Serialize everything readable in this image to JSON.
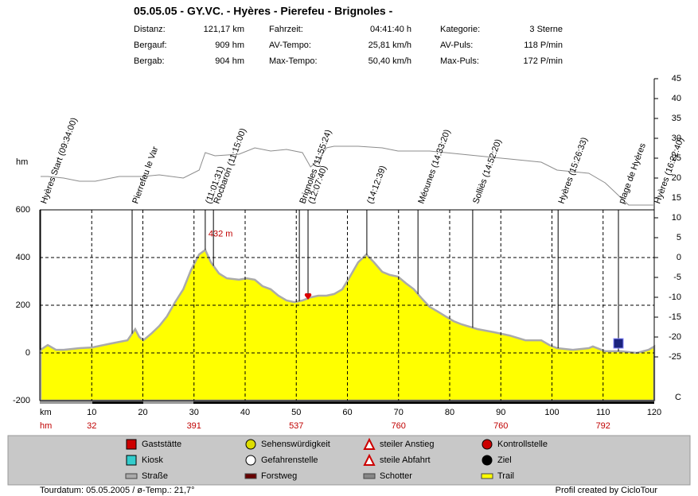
{
  "header": {
    "title": "05.05.05 - GY.VC. - Hyères - Pierefeu - Brignoles -",
    "stats": [
      [
        [
          "Distanz:",
          "121,17 km"
        ],
        [
          "Fahrzeit:",
          "04:41:40 h"
        ],
        [
          "Kategorie:",
          "3 Sterne"
        ]
      ],
      [
        [
          "Bergauf:",
          "909 hm"
        ],
        [
          "AV-Tempo:",
          "25,81 km/h"
        ],
        [
          "AV-Puls:",
          "118 P/min"
        ]
      ],
      [
        [
          "Bergab:",
          "904 hm"
        ],
        [
          "Max-Tempo:",
          "50,40 km/h"
        ],
        [
          "Max-Puls:",
          "172 P/min"
        ]
      ]
    ]
  },
  "chart_data": {
    "type": "area",
    "y_label": "hm",
    "x_label": "km",
    "y2_label": "C",
    "xlim": [
      0,
      120
    ],
    "xticks": [
      10,
      20,
      30,
      40,
      50,
      60,
      70,
      80,
      90,
      100,
      110,
      120
    ],
    "ylim": [
      -200,
      600
    ],
    "yticks": [
      -200,
      0,
      200,
      400,
      600
    ],
    "y2lim": [
      -36,
      45
    ],
    "y2ticks": [
      -25,
      -20,
      -15,
      -10,
      -5,
      0,
      5,
      10,
      15,
      20,
      25,
      30,
      35,
      40,
      45
    ],
    "grid": true,
    "series": [
      {
        "color": "#ffff00",
        "x": [
          0,
          1.4,
          3.0,
          4.5,
          7.6,
          10.1,
          13.9,
          17.0,
          18.5,
          19.3,
          20.1,
          21.6,
          23.2,
          24.7,
          26.3,
          27.9,
          29.4,
          31.0,
          32.2,
          33.3,
          34.9,
          36.4,
          38.8,
          40.3,
          41.9,
          43.4,
          45.0,
          46.5,
          48.1,
          49.6,
          51.2,
          52.8,
          54.3,
          55.9,
          57.4,
          59.0,
          60.5,
          62.1,
          63.7,
          65.2,
          66.8,
          68.3,
          69.9,
          71.4,
          73.0,
          74.6,
          76.1,
          77.7,
          79.2,
          80.8,
          82.3,
          85.4,
          88.6,
          91.7,
          94.8,
          97.9,
          99.5,
          101.0,
          104.1,
          107.2,
          108.0,
          110.4,
          113.5,
          116.6,
          118.9,
          120
        ],
        "values": [
          13,
          33,
          13,
          13,
          20,
          23,
          40,
          53,
          100,
          67,
          53,
          80,
          113,
          153,
          213,
          267,
          347,
          413,
          432,
          380,
          333,
          313,
          307,
          313,
          307,
          280,
          267,
          240,
          220,
          213,
          220,
          233,
          240,
          240,
          247,
          267,
          320,
          380,
          413,
          380,
          340,
          327,
          320,
          293,
          267,
          227,
          193,
          173,
          153,
          133,
          120,
          100,
          87,
          73,
          53,
          53,
          33,
          20,
          13,
          20,
          27,
          7,
          7,
          0,
          13,
          27
        ]
      },
      {
        "color": "#8c8c8c",
        "axis": "y2",
        "x": [
          0,
          1.4,
          4.5,
          7.6,
          10.7,
          15.4,
          20.1,
          23.2,
          27.9,
          31.0,
          32.2,
          34.1,
          38.8,
          41.9,
          45.0,
          48.1,
          51.2,
          52.8,
          54.3,
          55.9,
          57.4,
          62.1,
          66.8,
          69.9,
          76.1,
          85.4,
          91.7,
          97.9,
          101.0,
          107.2,
          110.4,
          115.0,
          120
        ],
        "values": [
          20.4,
          20.4,
          20,
          19.2,
          19.2,
          20.4,
          20.4,
          20.8,
          20,
          22,
          26.4,
          25.6,
          26,
          27.6,
          26.8,
          27.2,
          26.4,
          22.8,
          24.4,
          27.6,
          28,
          28,
          27.6,
          26.8,
          26.8,
          25.6,
          24.8,
          24,
          22,
          21.2,
          18.8,
          13.2,
          13.2
        ]
      }
    ],
    "annotations": [
      {
        "text": "432 m",
        "x": 32.2,
        "y": 432
      }
    ],
    "waypoints": [
      {
        "label": "Hyères Start (09:34:00)",
        "km": 0
      },
      {
        "label": "Pierrefeu le Var",
        "km": 17.9
      },
      {
        "label": "(11:01:31)",
        "km": 32.2
      },
      {
        "label": "Rocbaron (11:15:00)",
        "km": 33.8
      },
      {
        "label": "Brignoles (11:55:24)",
        "km": 50.6
      },
      {
        "label": "(12:07:40)",
        "km": 52.3
      },
      {
        "label": "(14:12:39)",
        "km": 63.8
      },
      {
        "label": "Méounes (14:33:20)",
        "km": 73.8
      },
      {
        "label": "Solliès (14:52:20)",
        "km": 84.5
      },
      {
        "label": "Hyères (15:26:33)",
        "km": 101.2
      },
      {
        "label": "plage de Hyères",
        "km": 113
      },
      {
        "label": "Hyères (16:22:40)",
        "km": 120
      }
    ],
    "climb_row": {
      "label": "hm",
      "km": [
        10,
        30,
        50,
        70,
        90,
        110
      ],
      "values": [
        32,
        391,
        537,
        760,
        760,
        792
      ]
    }
  },
  "legend": [
    [
      "Gaststätte",
      "Sehenswürdigkeit",
      "steiler Anstieg",
      "Kontrollstelle"
    ],
    [
      "Kiosk",
      "Gefahrenstelle",
      "steile Abfahrt",
      "Ziel"
    ],
    [
      "Straße",
      "Forstweg",
      "Schotter",
      "Trail"
    ]
  ],
  "footer": {
    "left": "Tourdatum: 05.05.2005 / ø-Temp.: 21,7°",
    "right": "Profil created by CicloTour"
  }
}
